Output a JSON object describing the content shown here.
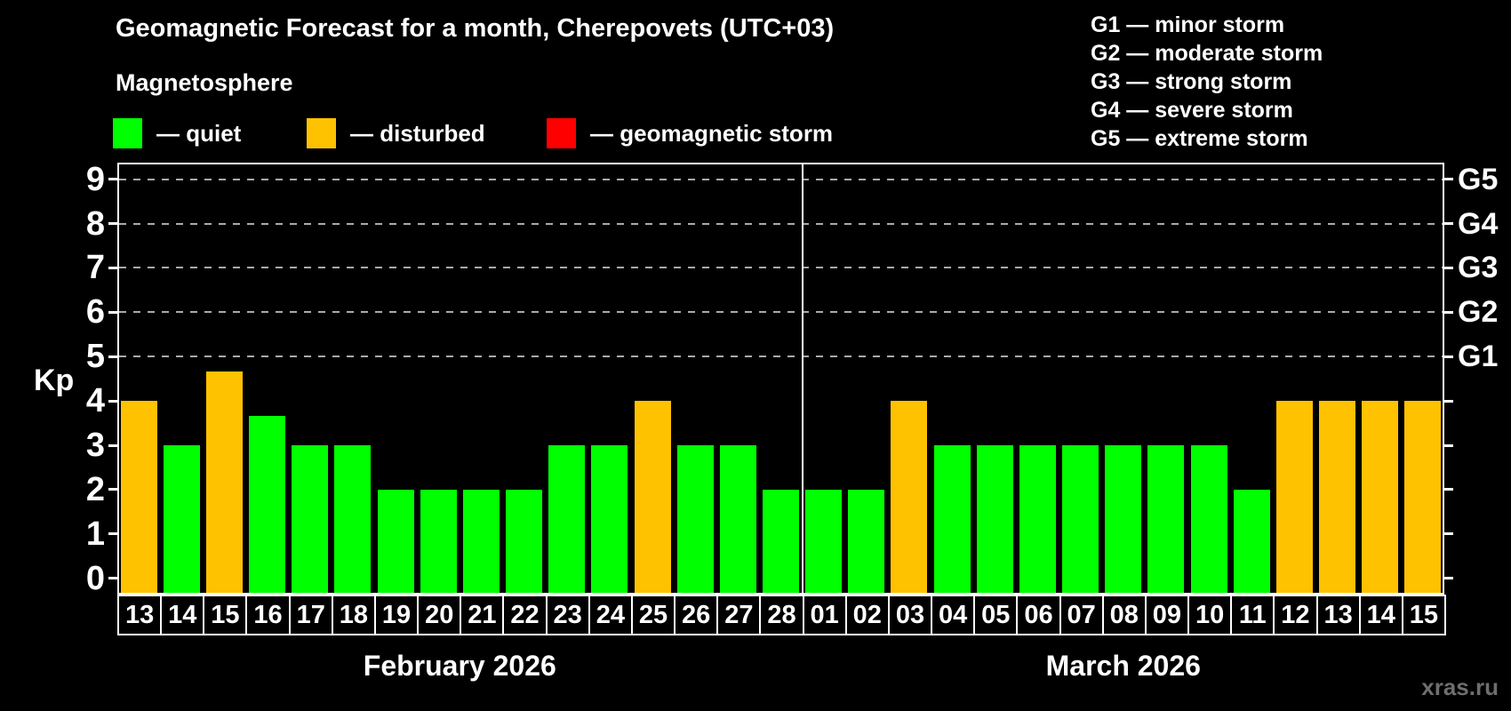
{
  "title": "Geomagnetic Forecast for a month, Cherepovets (UTC+03)",
  "subtitle": "Magnetosphere",
  "legend": {
    "items": [
      {
        "key": "quiet",
        "label": "— quiet",
        "color": "#00ff00"
      },
      {
        "key": "disturbed",
        "label": "— disturbed",
        "color": "#ffc200"
      },
      {
        "key": "storm",
        "label": "— geomagnetic storm",
        "color": "#ff0000"
      }
    ]
  },
  "g_legend": [
    "G1 — minor storm",
    "G2 — moderate storm",
    "G3 — strong storm",
    "G4 — severe storm",
    "G5 — extreme storm"
  ],
  "watermark": "xras.ru",
  "chart_data": {
    "type": "bar",
    "title": "Geomagnetic Forecast for a month, Cherepovets (UTC+03)",
    "ylabel": "Kp",
    "ylim": [
      0,
      9
    ],
    "yticks": [
      0,
      1,
      2,
      3,
      4,
      5,
      6,
      7,
      8,
      9
    ],
    "right_axis_labels": [
      {
        "level": 5,
        "label": "G1"
      },
      {
        "level": 6,
        "label": "G2"
      },
      {
        "level": 7,
        "label": "G3"
      },
      {
        "level": 8,
        "label": "G4"
      },
      {
        "level": 9,
        "label": "G5"
      }
    ],
    "gridlines_at": [
      5,
      6,
      7,
      8,
      9
    ],
    "grid_style": "dashed",
    "legend_position": "top",
    "colors": {
      "quiet": "#00ff00",
      "disturbed": "#ffc200",
      "storm": "#ff0000"
    },
    "series": [
      {
        "month": "February 2026",
        "days": [
          "13",
          "14",
          "15",
          "16",
          "17",
          "18",
          "19",
          "20",
          "21",
          "22",
          "23",
          "24",
          "25",
          "26",
          "27",
          "28"
        ],
        "kp": [
          4,
          3,
          4.67,
          3.67,
          3,
          3,
          2,
          2,
          2,
          2,
          3,
          3,
          4,
          3,
          3,
          2
        ],
        "status": [
          "disturbed",
          "quiet",
          "disturbed",
          "quiet",
          "quiet",
          "quiet",
          "quiet",
          "quiet",
          "quiet",
          "quiet",
          "quiet",
          "quiet",
          "disturbed",
          "quiet",
          "quiet",
          "quiet"
        ]
      },
      {
        "month": "March 2026",
        "days": [
          "01",
          "02",
          "03",
          "04",
          "05",
          "06",
          "07",
          "08",
          "09",
          "10",
          "11",
          "12",
          "13",
          "14",
          "15"
        ],
        "kp": [
          2,
          2,
          4,
          3,
          3,
          3,
          3,
          3,
          3,
          3,
          2,
          4,
          4,
          4,
          4
        ],
        "status": [
          "quiet",
          "quiet",
          "disturbed",
          "quiet",
          "quiet",
          "quiet",
          "quiet",
          "quiet",
          "quiet",
          "quiet",
          "quiet",
          "disturbed",
          "disturbed",
          "disturbed",
          "disturbed"
        ]
      }
    ]
  }
}
